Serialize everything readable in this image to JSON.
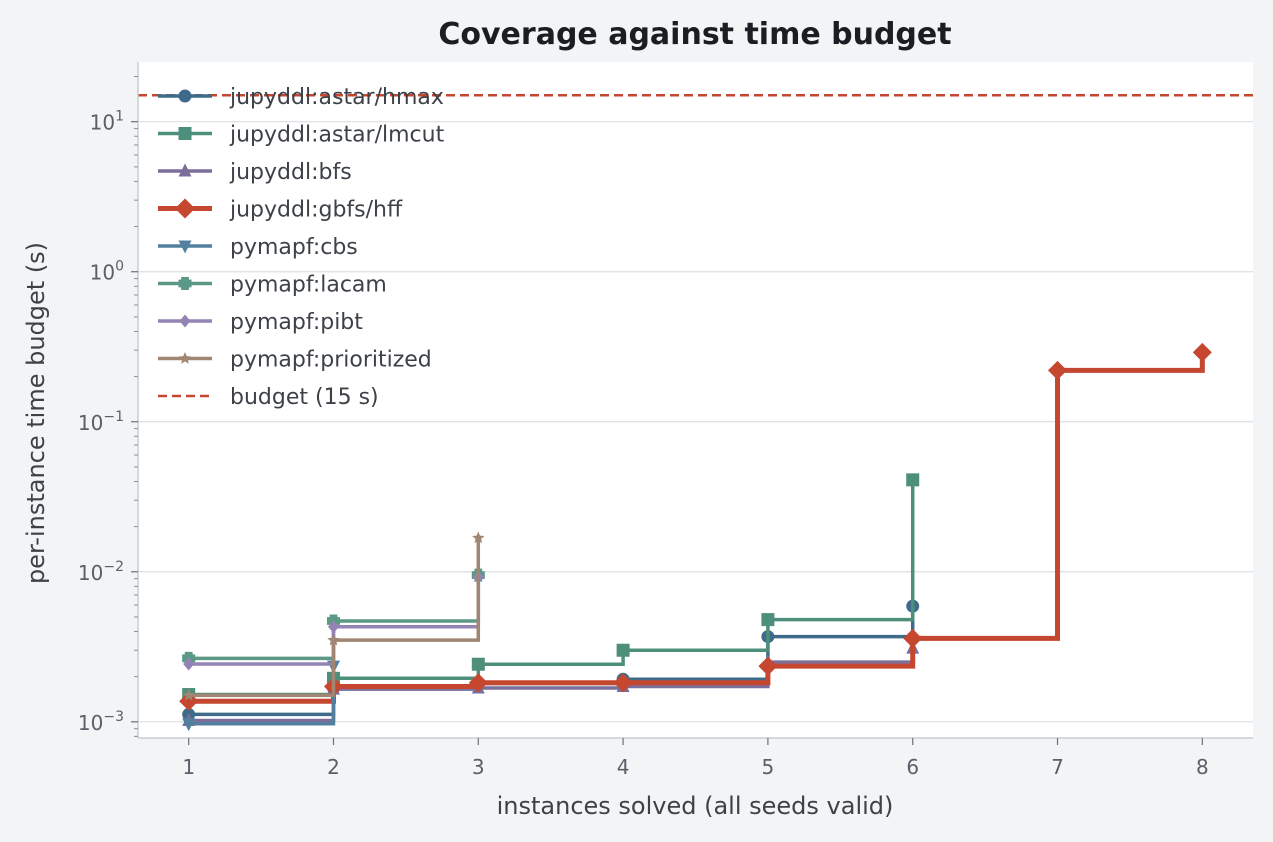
{
  "chart_data": {
    "type": "line",
    "step": "post",
    "title": "Coverage against time budget",
    "xlabel": "instances solved (all seeds valid)",
    "ylabel": "per-instance time budget (s)",
    "yscale": "log",
    "xlim": [
      0.65,
      8.35
    ],
    "ylim": [
      0.00078,
      25
    ],
    "xticks": [
      1,
      2,
      3,
      4,
      5,
      6,
      7,
      8
    ],
    "yticks": [
      {
        "value": 0.001,
        "base": "10",
        "exp": "−3"
      },
      {
        "value": 0.01,
        "base": "10",
        "exp": "−2"
      },
      {
        "value": 0.1,
        "base": "10",
        "exp": "−1"
      },
      {
        "value": 1,
        "base": "10",
        "exp": "0"
      },
      {
        "value": 10,
        "base": "10",
        "exp": "1"
      }
    ],
    "grid": "y-major",
    "legend_position": "top-left",
    "series": [
      {
        "name": "jupyddl:astar/hmax",
        "color": "#3f6b8a",
        "marker": "circle",
        "x": [
          1,
          2,
          3,
          4,
          5,
          6
        ],
        "y": [
          0.00112,
          0.00168,
          0.0018,
          0.00192,
          0.0037,
          0.0059
        ]
      },
      {
        "name": "jupyddl:astar/lmcut",
        "color": "#4e8f7c",
        "marker": "square",
        "x": [
          1,
          2,
          3,
          4,
          5,
          6
        ],
        "y": [
          0.00152,
          0.00195,
          0.00242,
          0.003,
          0.0048,
          0.041
        ]
      },
      {
        "name": "jupyddl:bfs",
        "color": "#7b6e9b",
        "marker": "triangle-up",
        "x": [
          1,
          2,
          3,
          4,
          5,
          6
        ],
        "y": [
          0.00102,
          0.00165,
          0.00168,
          0.00172,
          0.0025,
          0.0031
        ]
      },
      {
        "name": "jupyddl:gbfs/hff",
        "color": "#c5472f",
        "marker": "diamond",
        "bold": true,
        "x": [
          1,
          2,
          3,
          4,
          5,
          6,
          7,
          8
        ],
        "y": [
          0.00137,
          0.00172,
          0.00182,
          0.00182,
          0.00235,
          0.0036,
          0.22,
          0.29
        ]
      },
      {
        "name": "pymapf:cbs",
        "color": "#53809f",
        "marker": "triangle-down",
        "x": [
          1,
          2
        ],
        "y": [
          0.00097,
          0.00235
        ]
      },
      {
        "name": "pymapf:lacam",
        "color": "#5b9885",
        "marker": "plus",
        "x": [
          1,
          2,
          3
        ],
        "y": [
          0.00265,
          0.0047,
          0.0095
        ]
      },
      {
        "name": "pymapf:pibt",
        "color": "#9384b4",
        "marker": "thin-diamond",
        "x": [
          1,
          2,
          3
        ],
        "y": [
          0.00243,
          0.0043,
          0.0092
        ]
      },
      {
        "name": "pymapf:prioritized",
        "color": "#a08673",
        "marker": "star",
        "x": [
          1,
          2,
          3
        ],
        "y": [
          0.0015,
          0.0035,
          0.0168
        ]
      }
    ],
    "reference_lines": [
      {
        "name": "budget (15 s)",
        "y": 15,
        "color": "#c5472f",
        "style": "dashed"
      }
    ]
  }
}
